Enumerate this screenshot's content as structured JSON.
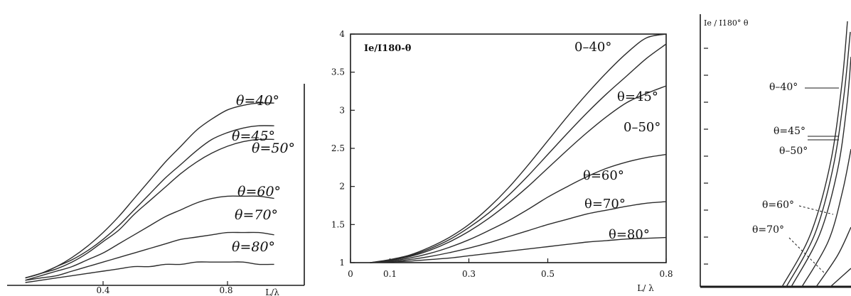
{
  "chart_data": [
    {
      "type": "line",
      "xlabel": "L/λ",
      "x_ticks": [
        "0.4",
        "0.8"
      ],
      "x": [
        0.15,
        0.2,
        0.25,
        0.3,
        0.35,
        0.4,
        0.45,
        0.5,
        0.55,
        0.6,
        0.65,
        0.7,
        0.75,
        0.8,
        0.85,
        0.9,
        0.95
      ],
      "series": [
        {
          "name": "θ=40°",
          "values": [
            0.02,
            0.04,
            0.07,
            0.11,
            0.16,
            0.22,
            0.29,
            0.37,
            0.45,
            0.53,
            0.6,
            0.67,
            0.72,
            0.76,
            0.78,
            0.79,
            0.79
          ]
        },
        {
          "name": "θ=45°",
          "values": [
            0.02,
            0.04,
            0.07,
            0.1,
            0.14,
            0.19,
            0.25,
            0.32,
            0.39,
            0.46,
            0.52,
            0.58,
            0.63,
            0.66,
            0.68,
            0.69,
            0.69
          ]
        },
        {
          "name": "θ=50°",
          "values": [
            0.02,
            0.04,
            0.06,
            0.09,
            0.13,
            0.18,
            0.23,
            0.3,
            0.36,
            0.42,
            0.48,
            0.53,
            0.57,
            0.6,
            0.62,
            0.63,
            0.63
          ]
        },
        {
          "name": "θ=60°",
          "values": [
            0.01,
            0.03,
            0.05,
            0.07,
            0.1,
            0.13,
            0.17,
            0.21,
            0.25,
            0.29,
            0.32,
            0.35,
            0.37,
            0.38,
            0.38,
            0.38,
            0.37
          ]
        },
        {
          "name": "θ=70°",
          "values": [
            0.01,
            0.02,
            0.03,
            0.05,
            0.07,
            0.09,
            0.11,
            0.13,
            0.15,
            0.17,
            0.19,
            0.2,
            0.21,
            0.22,
            0.22,
            0.22,
            0.21
          ]
        },
        {
          "name": "θ=80°",
          "values": [
            0.0,
            0.01,
            0.02,
            0.03,
            0.04,
            0.05,
            0.06,
            0.07,
            0.07,
            0.08,
            0.08,
            0.09,
            0.09,
            0.09,
            0.09,
            0.08,
            0.08
          ]
        }
      ]
    },
    {
      "type": "line",
      "title": "Ie/I180-θ",
      "xlabel": "L/ λ",
      "xlim": [
        0,
        0.8
      ],
      "ylim": [
        1,
        4
      ],
      "x_ticks": [
        "0",
        "0.1",
        "0.3",
        "0.5",
        "0.8"
      ],
      "x_tick_values": [
        0,
        0.1,
        0.3,
        0.5,
        0.8
      ],
      "y_ticks": [
        "1",
        "1.5",
        "2",
        "2.5",
        "3",
        "3.5",
        "4"
      ],
      "y_tick_values": [
        1,
        1.5,
        2,
        2.5,
        3,
        3.5,
        4
      ],
      "x": [
        0.05,
        0.1,
        0.15,
        0.2,
        0.25,
        0.3,
        0.35,
        0.4,
        0.45,
        0.5,
        0.55,
        0.6,
        0.65,
        0.7,
        0.75,
        0.8
      ],
      "series": [
        {
          "name": "0–40°",
          "values": [
            1.0,
            1.04,
            1.1,
            1.2,
            1.33,
            1.5,
            1.72,
            1.98,
            2.28,
            2.6,
            2.92,
            3.22,
            3.5,
            3.75,
            3.95,
            4.1
          ]
        },
        {
          "name": "θ=45°",
          "values": [
            1.0,
            1.03,
            1.09,
            1.18,
            1.3,
            1.46,
            1.65,
            1.88,
            2.14,
            2.42,
            2.7,
            2.97,
            3.22,
            3.45,
            3.68,
            3.87
          ]
        },
        {
          "name": "0–50°",
          "values": [
            1.0,
            1.03,
            1.08,
            1.16,
            1.27,
            1.41,
            1.58,
            1.78,
            2.0,
            2.24,
            2.48,
            2.71,
            2.92,
            3.1,
            3.22,
            3.32
          ]
        },
        {
          "name": "θ=60°",
          "values": [
            1.0,
            1.02,
            1.06,
            1.12,
            1.2,
            1.3,
            1.42,
            1.55,
            1.7,
            1.86,
            2.0,
            2.13,
            2.24,
            2.32,
            2.38,
            2.42
          ]
        },
        {
          "name": "θ=70°",
          "values": [
            1.0,
            1.01,
            1.04,
            1.08,
            1.13,
            1.19,
            1.26,
            1.34,
            1.42,
            1.5,
            1.57,
            1.64,
            1.69,
            1.74,
            1.78,
            1.8
          ]
        },
        {
          "name": "θ=80°",
          "values": [
            1.0,
            1.01,
            1.02,
            1.04,
            1.06,
            1.09,
            1.12,
            1.15,
            1.18,
            1.21,
            1.24,
            1.27,
            1.29,
            1.31,
            1.32,
            1.33
          ]
        }
      ]
    },
    {
      "type": "line",
      "title": "Ie / I180° θ",
      "series": [
        {
          "name": "θ–40°"
        },
        {
          "name": "θ=45°"
        },
        {
          "name": "θ–50°"
        },
        {
          "name": "θ=60°"
        },
        {
          "name": "θ=70°"
        }
      ]
    }
  ]
}
